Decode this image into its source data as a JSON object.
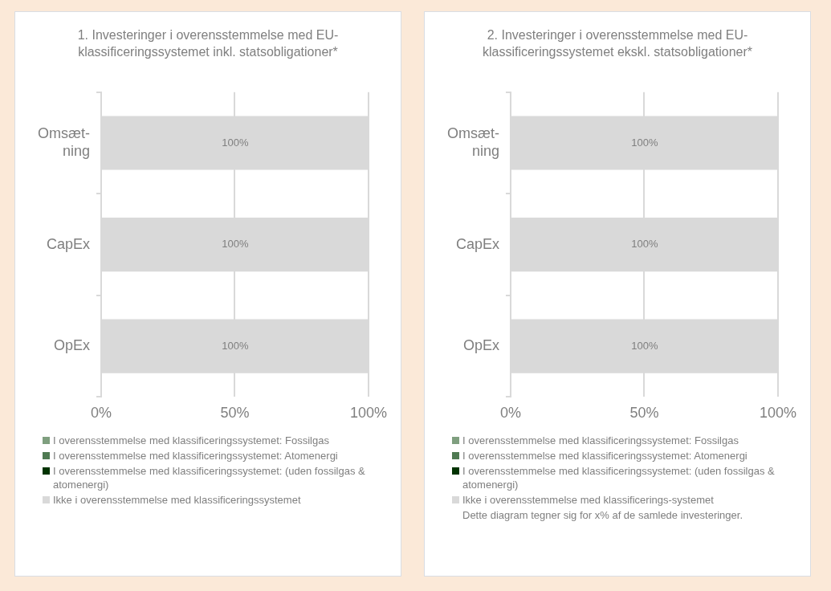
{
  "chart_data": [
    {
      "type": "bar",
      "orientation": "horizontal",
      "stacked": true,
      "title": "1. Investeringer i overensstemmelse med EU-klassificeringssystemet inkl. statsobligationer*",
      "categories": [
        "Omsæt-ning",
        "CapEx",
        "OpEx"
      ],
      "xlim": [
        0,
        100
      ],
      "xticks": [
        {
          "value": 0,
          "label": "0%"
        },
        {
          "value": 50,
          "label": "50%"
        },
        {
          "value": 100,
          "label": "100%"
        }
      ],
      "grid": "x",
      "legend": "bottom",
      "series": [
        {
          "name": "I overensstemmelse med klassificeringssystemet: Fossilgas",
          "color": "#7f9f7f",
          "values": [
            0,
            0,
            0
          ]
        },
        {
          "name": "I overensstemmelse med klassificeringssystemet: Atomenergi",
          "color": "#4f7a52",
          "values": [
            0,
            0,
            0
          ]
        },
        {
          "name": "I overensstemmelse med klassificeringssystemet: (uden fossilgas & atomenergi)",
          "color": "#003300",
          "values": [
            0,
            0,
            0
          ]
        },
        {
          "name": "Ikke i overensstemmelse med klassificeringssystemet",
          "color": "#d9d9d9",
          "values": [
            100,
            100,
            100
          ],
          "value_labels": [
            "100%",
            "100%",
            "100%"
          ]
        }
      ]
    },
    {
      "type": "bar",
      "orientation": "horizontal",
      "stacked": true,
      "title": "2. Investeringer i overensstemmelse med EU-klassificeringssystemet ekskl. statsobligationer*",
      "categories": [
        "Omsæt-ning",
        "CapEx",
        "OpEx"
      ],
      "xlim": [
        0,
        100
      ],
      "xticks": [
        {
          "value": 0,
          "label": "0%"
        },
        {
          "value": 50,
          "label": "50%"
        },
        {
          "value": 100,
          "label": "100%"
        }
      ],
      "grid": "x",
      "legend": "bottom",
      "series": [
        {
          "name": "I overensstemmelse med klassificeringssystemet: Fossilgas",
          "color": "#7f9f7f",
          "values": [
            0,
            0,
            0
          ]
        },
        {
          "name": "I overensstemmelse med klassificeringssystemet: Atomenergi",
          "color": "#4f7a52",
          "values": [
            0,
            0,
            0
          ]
        },
        {
          "name": "I overensstemmelse med klassificeringssystemet: (uden fossilgas & atomenergi)",
          "color": "#003300",
          "values": [
            0,
            0,
            0
          ]
        },
        {
          "name": "Ikke i overensstemmelse med klassificerings-systemet",
          "color": "#d9d9d9",
          "values": [
            100,
            100,
            100
          ],
          "value_labels": [
            "100%",
            "100%",
            "100%"
          ]
        }
      ],
      "annotations": [
        "Dette diagram tegner sig for x% af de samlede investeringer."
      ]
    }
  ]
}
